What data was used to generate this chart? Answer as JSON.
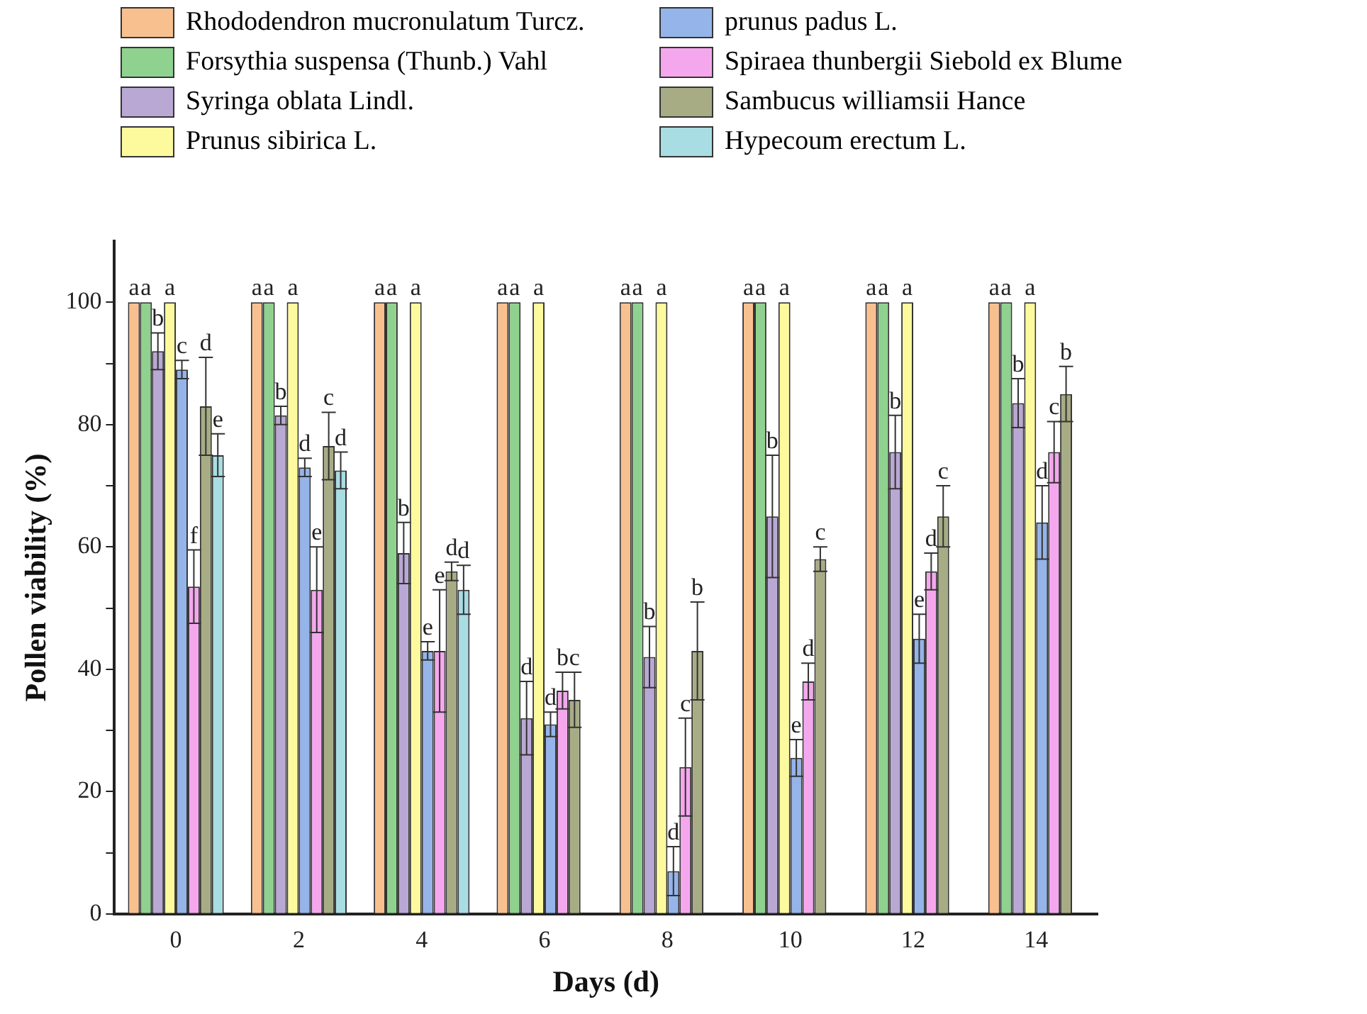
{
  "chart_data": {
    "type": "bar",
    "xlabel": "Days (d)",
    "ylabel": "Pollen viability (%)",
    "categories": [
      "0",
      "2",
      "4",
      "6",
      "8",
      "10",
      "12",
      "14"
    ],
    "ylim": [
      0,
      110
    ],
    "yticks": [
      0,
      {
        "value": 10,
        "label": null
      },
      20,
      {
        "value": 30,
        "label": null
      },
      40,
      {
        "value": 50,
        "label": null
      },
      60,
      {
        "value": 70,
        "label": null
      },
      80,
      {
        "value": 90,
        "label": null
      },
      100
    ],
    "grid": false,
    "legend": "top",
    "series": [
      {
        "name": "Rhododendron mucronulatum Turcz.",
        "color": "#f9c08f",
        "values": [
          100,
          100,
          100,
          100,
          100,
          100,
          100,
          100
        ],
        "value_labels": [
          "a",
          "a",
          "a",
          "a",
          "a",
          "a",
          "a",
          "a"
        ]
      },
      {
        "name": "Forsythia suspensa (Thunb.) Vahl",
        "color": "#8fd18f",
        "values": [
          100,
          100,
          100,
          100,
          100,
          100,
          100,
          100
        ],
        "value_labels": [
          "a",
          "a",
          "a",
          "a",
          "a",
          "a",
          "a",
          "a"
        ]
      },
      {
        "name": "Syringa oblata Lindl.",
        "color": "#b9a7d4",
        "values": [
          92,
          81.5,
          59,
          32,
          42,
          65,
          75.5,
          83.5
        ],
        "errors": [
          3,
          1.5,
          5,
          6,
          5,
          10,
          6,
          4
        ],
        "value_labels": [
          "b",
          "b",
          "b",
          "d",
          "b",
          "b",
          "b",
          "b"
        ]
      },
      {
        "name": "Prunus sibirica L.",
        "color": "#fdfa9e",
        "values": [
          100,
          100,
          100,
          100,
          100,
          100,
          100,
          100
        ],
        "value_labels": [
          "a",
          "a",
          "a",
          "a",
          "a",
          "a",
          "a",
          "a"
        ]
      },
      {
        "name": "prunus padus L.",
        "color": "#94b4ea",
        "values": [
          89,
          73,
          43,
          31,
          7,
          25.5,
          45,
          64
        ],
        "errors": [
          1.5,
          1.5,
          1.5,
          2,
          4,
          3,
          4,
          6
        ],
        "value_labels": [
          "c",
          "d",
          "e",
          "d",
          "d",
          "e",
          "e",
          "d"
        ]
      },
      {
        "name": "Spiraea thunbergii Siebold ex Blume",
        "color": "#f5a7ee",
        "values": [
          53.5,
          53,
          43,
          36.5,
          24,
          38,
          56,
          75.5
        ],
        "errors": [
          6,
          7,
          10,
          3,
          8,
          3,
          3,
          5
        ],
        "value_labels": [
          "f",
          "e",
          "e",
          "b",
          "c",
          "d",
          "d",
          "c"
        ]
      },
      {
        "name": "Sambucus williamsii Hance",
        "color": "#a8ac85",
        "values": [
          83,
          76.5,
          56,
          35,
          43,
          58,
          65,
          85
        ],
        "errors": [
          8,
          5.5,
          1.5,
          4.5,
          8,
          2,
          5,
          4.5
        ],
        "value_labels": [
          "d",
          "c",
          "d",
          "c",
          "b",
          "c",
          "c",
          "b"
        ]
      },
      {
        "name": "Hypecoum erectum L.",
        "color": "#a8dde3",
        "values": [
          75,
          72.5,
          53,
          null,
          null,
          null,
          null,
          null
        ],
        "errors": [
          3.5,
          3,
          4,
          null,
          null,
          null,
          null,
          null
        ],
        "value_labels": [
          "e",
          "d",
          "d",
          null,
          null,
          null,
          null,
          null
        ]
      }
    ]
  }
}
